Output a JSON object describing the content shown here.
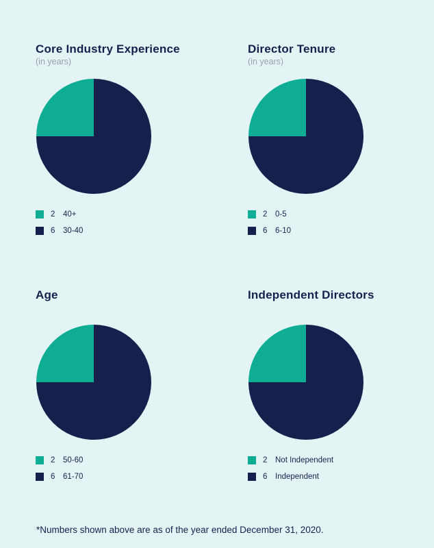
{
  "colors": {
    "background": "#e4f4f4",
    "teal": "#0fae94",
    "navy": "#17204d",
    "subtitle": "#9aa0ae"
  },
  "footnote": "*Numbers shown above are as of the year ended December 31, 2020.",
  "chart_data": [
    {
      "type": "pie",
      "title": "Core Industry Experience",
      "subtitle": "(in years)",
      "slices": [
        {
          "label": "40+",
          "value": 2,
          "color": "#0fae94"
        },
        {
          "label": "30-40",
          "value": 6,
          "color": "#17204d"
        }
      ]
    },
    {
      "type": "pie",
      "title": "Director Tenure",
      "subtitle": "(in years)",
      "slices": [
        {
          "label": "0-5",
          "value": 2,
          "color": "#0fae94"
        },
        {
          "label": "6-10",
          "value": 6,
          "color": "#17204d"
        }
      ]
    },
    {
      "type": "pie",
      "title": "Age",
      "subtitle": "",
      "slices": [
        {
          "label": "50-60",
          "value": 2,
          "color": "#0fae94"
        },
        {
          "label": "61-70",
          "value": 6,
          "color": "#17204d"
        }
      ]
    },
    {
      "type": "pie",
      "title": "Independent Directors",
      "subtitle": "",
      "slices": [
        {
          "label": "Not Independent",
          "value": 2,
          "color": "#0fae94"
        },
        {
          "label": "Independent",
          "value": 6,
          "color": "#17204d"
        }
      ]
    }
  ]
}
